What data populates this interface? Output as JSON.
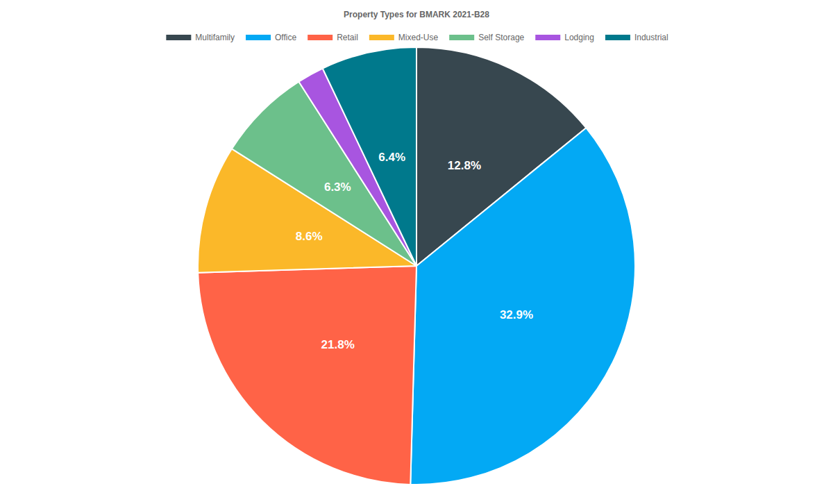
{
  "chart_data": {
    "type": "pie",
    "title": "Property Types for BMARK 2021-B28",
    "categories": [
      "Multifamily",
      "Office",
      "Retail",
      "Mixed-Use",
      "Self Storage",
      "Lodging",
      "Industrial"
    ],
    "values": [
      12.8,
      32.9,
      21.8,
      8.6,
      6.3,
      1.8,
      6.4
    ],
    "value_labels": [
      "12.8%",
      "32.9%",
      "21.8%",
      "8.6%",
      "6.3%",
      null,
      "6.4%"
    ],
    "colors": [
      "#37474f",
      "#03a9f4",
      "#ff6347",
      "#fbb829",
      "#6cc08b",
      "#a855e0",
      "#00798c"
    ],
    "legend": "top",
    "data_labels": true
  }
}
